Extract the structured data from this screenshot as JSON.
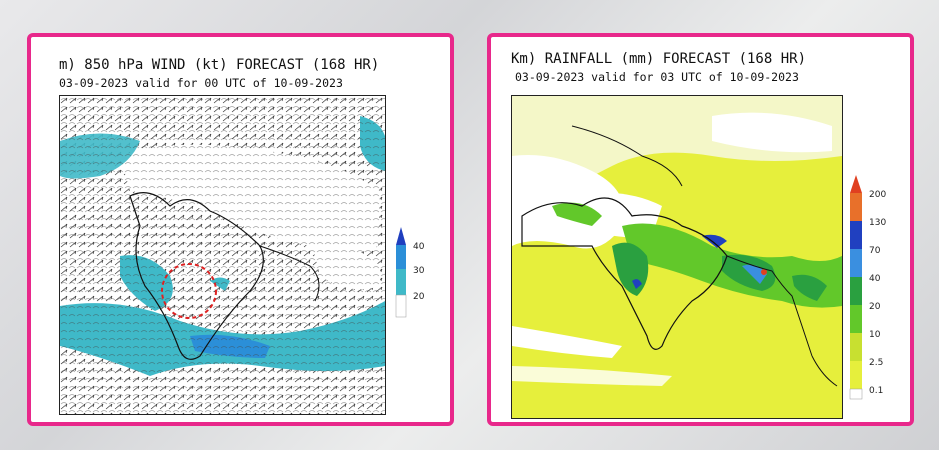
{
  "left_panel": {
    "title": "m) 850 hPa WIND (kt) FORECAST (168 HR)",
    "subtitle": "03-09-2023 valid for 00 UTC of 10-09-2023",
    "legend": {
      "ticks": [
        "40",
        "30",
        "20"
      ],
      "colors": [
        "#1f3fbf",
        "#2b8fd8",
        "#3fb9c8"
      ]
    },
    "highlight": "dashed red circle over central India"
  },
  "right_panel": {
    "title": "Km) RAINFALL (mm) FORECAST (168 HR)",
    "subtitle": "03-09-2023 valid for 03 UTC of 10-09-2023",
    "legend": {
      "ticks": [
        "200",
        "130",
        "70",
        "40",
        "20",
        "10",
        "2.5",
        "0.1"
      ],
      "colors": [
        "#e04020",
        "#2040c0",
        "#3a8fe0",
        "#2aa040",
        "#62c82a",
        "#c8e030",
        "#e6ef3c",
        "#ffffff"
      ]
    }
  },
  "colors": {
    "frame": "#e8288b",
    "wind_shade": "#3fb9c8",
    "rain_base": "#e6ef3c"
  }
}
